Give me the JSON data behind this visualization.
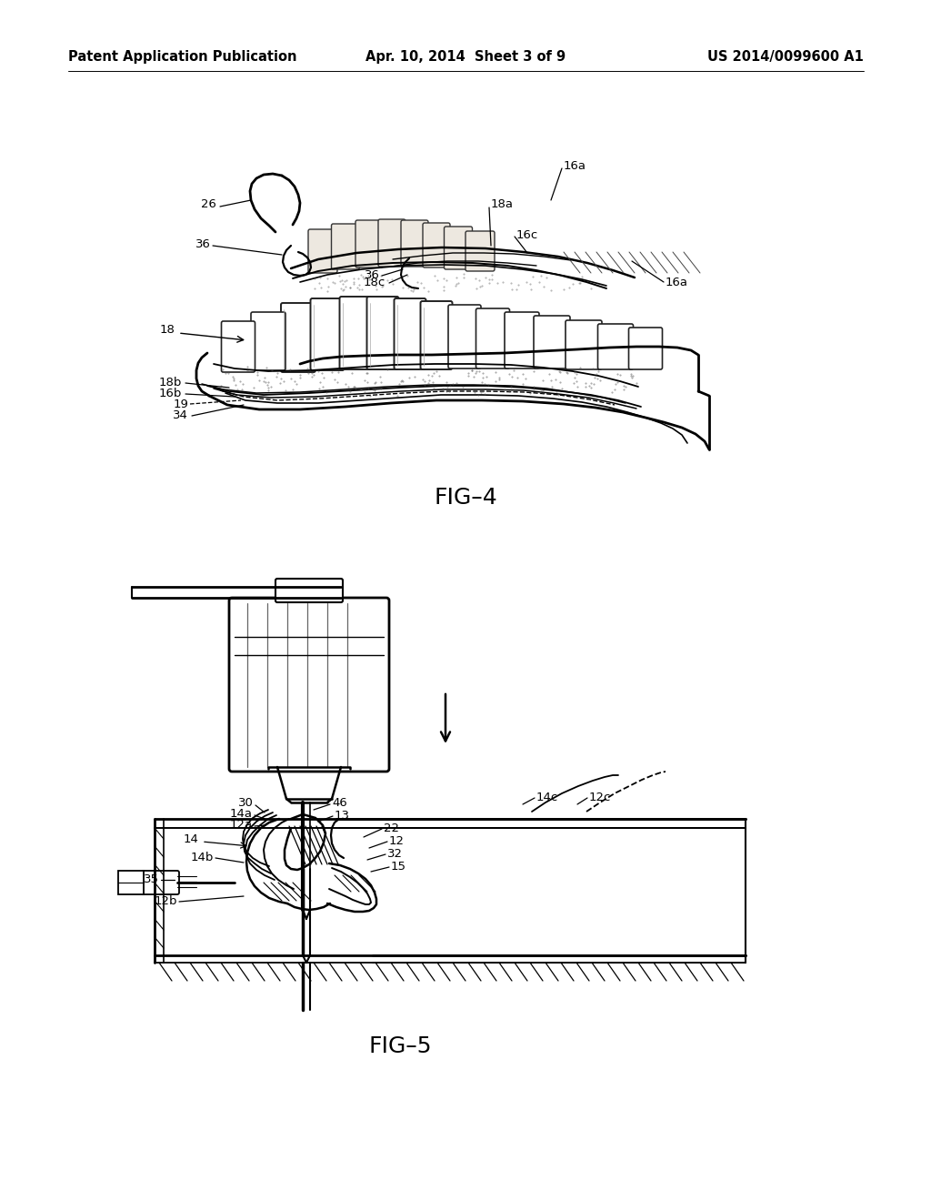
{
  "background_color": "#ffffff",
  "page_header": {
    "left": "Patent Application Publication",
    "center": "Apr. 10, 2014  Sheet 3 of 9",
    "right": "US 2014/0099600 A1",
    "fontsize": 10.5
  },
  "fig4_caption": "FIG–4",
  "fig5_caption": "FIG–5"
}
